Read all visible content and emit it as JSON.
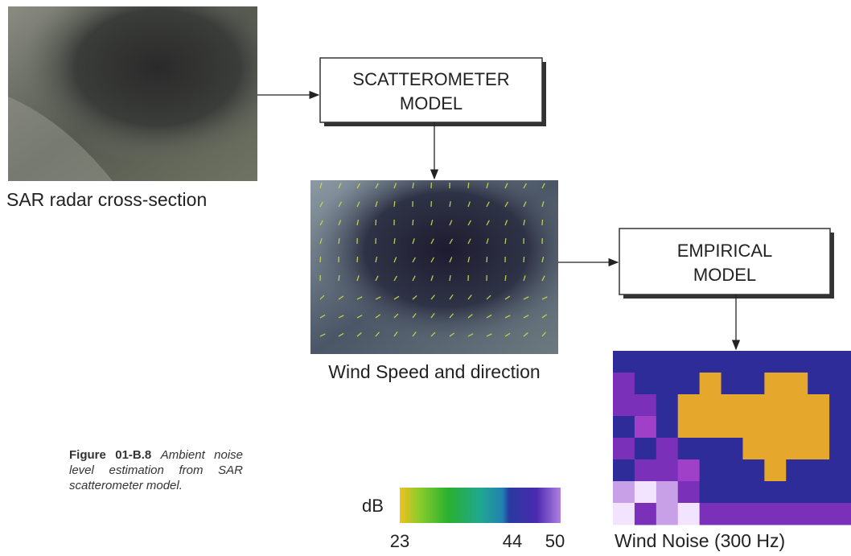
{
  "images": [
    {
      "caption": "SAR radar cross-section"
    },
    {
      "caption": "Wind Speed and direction"
    },
    {
      "caption": "Wind Noise (300 Hz)"
    }
  ],
  "models": [
    {
      "lines": [
        "SCATTEROMETER",
        "MODEL"
      ]
    },
    {
      "lines": [
        "EMPIRICAL",
        "MODEL"
      ]
    }
  ],
  "figure_caption": {
    "label": "Figure 01-B.8",
    "text": "Ambient noise level estimation from SAR scatterometer model."
  },
  "colorbar": {
    "unit": "dB",
    "ticks": [
      23,
      44,
      50
    ]
  }
}
